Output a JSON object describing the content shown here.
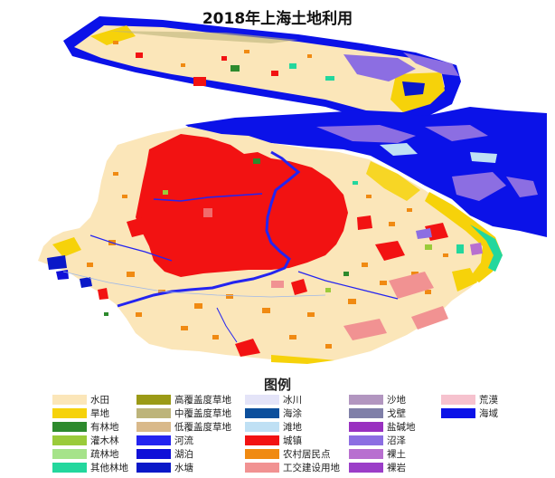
{
  "title": "2018年上海土地利用",
  "legend": {
    "title": "图例",
    "columns": [
      [
        {
          "label": "水田",
          "color": "#fbe6b9"
        },
        {
          "label": "旱地",
          "color": "#f6d20a"
        },
        {
          "label": "有林地",
          "color": "#2d8a2d"
        },
        {
          "label": "灌木林",
          "color": "#9acb3a"
        },
        {
          "label": "疏林地",
          "color": "#a6e38a"
        },
        {
          "label": "其他林地",
          "color": "#23d79d"
        }
      ],
      [
        {
          "label": "高覆盖度草地",
          "color": "#9b9a16"
        },
        {
          "label": "中覆盖度草地",
          "color": "#bdb47a"
        },
        {
          "label": "低覆盖度草地",
          "color": "#d9b98a"
        },
        {
          "label": "河流",
          "color": "#2424f0"
        },
        {
          "label": "湖泊",
          "color": "#1010d8"
        },
        {
          "label": "水塘",
          "color": "#0a18c8"
        }
      ],
      [
        {
          "label": "冰川",
          "color": "#e4e4f8"
        },
        {
          "label": "海涂",
          "color": "#0c4f9c"
        },
        {
          "label": "滩地",
          "color": "#bfe0f4"
        },
        {
          "label": "城镇",
          "color": "#f21212"
        },
        {
          "label": "农村居民点",
          "color": "#f08a12"
        },
        {
          "label": "工交建设用地",
          "color": "#f19292"
        }
      ],
      [
        {
          "label": "沙地",
          "color": "#b296c0"
        },
        {
          "label": "戈壁",
          "color": "#7f7fa8"
        },
        {
          "label": "盐碱地",
          "color": "#9930c0"
        },
        {
          "label": "沼泽",
          "color": "#8c6ee2"
        },
        {
          "label": "裸土",
          "color": "#b86fd0"
        },
        {
          "label": "裸岩",
          "color": "#9b3ec8"
        }
      ],
      [
        {
          "label": "荒漠",
          "color": "#f6c2ce"
        },
        {
          "label": "海域",
          "color": "#0b12e8"
        }
      ]
    ]
  }
}
